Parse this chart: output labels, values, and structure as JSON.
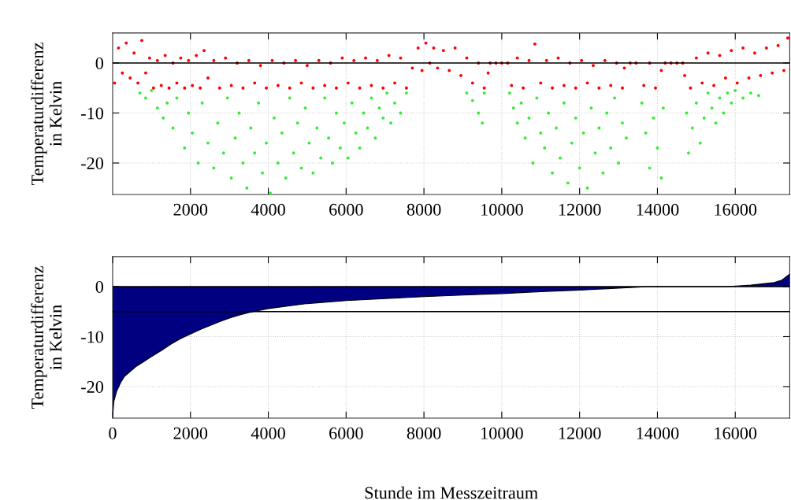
{
  "chart_data": [
    {
      "type": "scatter",
      "ylabel": "Temperaturdifferenz\nin Kelvin",
      "xlim": [
        0,
        17400
      ],
      "xticks": [
        2000,
        4000,
        6000,
        8000,
        10000,
        12000,
        14000,
        16000
      ],
      "ylim": [
        -26.3,
        6
      ],
      "yticks": [
        -20,
        -10,
        0
      ],
      "grid": true,
      "marker": "circle",
      "ref_lines": [
        {
          "axis": "y",
          "value": 0,
          "color": "#000000"
        }
      ],
      "series": [
        {
          "color": "#ff0000",
          "x": [
            50,
            150,
            250,
            350,
            450,
            550,
            650,
            750,
            850,
            950,
            1050,
            1150,
            1250,
            1350,
            1450,
            1550,
            1650,
            1750,
            1850,
            1950,
            2050,
            2150,
            2250,
            2350,
            2450,
            2600,
            2750,
            2900,
            3050,
            3200,
            3350,
            3500,
            3650,
            3800,
            3950,
            4100,
            4250,
            4400,
            4550,
            4700,
            4850,
            5000,
            5150,
            5300,
            5450,
            5600,
            5750,
            5900,
            6050,
            6200,
            6350,
            6500,
            6650,
            6800,
            6950,
            7100,
            7250,
            7400,
            7550,
            7700,
            7850,
            7950,
            8050,
            8150,
            8250,
            8350,
            8500,
            8650,
            8800,
            8950,
            9100,
            9250,
            9400,
            9550,
            9650,
            9700,
            9850,
            10000,
            10150,
            10250,
            10400,
            10550,
            10700,
            10850,
            11000,
            11150,
            11300,
            11450,
            11600,
            11750,
            11900,
            12050,
            12200,
            12350,
            12500,
            12650,
            12800,
            12950,
            13100,
            13150,
            13300,
            13450,
            13650,
            13800,
            13950,
            14100,
            14200,
            14350,
            14500,
            14650,
            14700,
            14850,
            15000,
            15150,
            15300,
            15450,
            15600,
            15750,
            15900,
            16050,
            16200,
            16350,
            16500,
            16650,
            16800,
            16950,
            17100,
            17250,
            17350
          ],
          "values": [
            -4,
            3,
            -2,
            4,
            -3,
            2,
            -4,
            4.5,
            -2,
            1,
            -5,
            0.5,
            -4.5,
            1.5,
            -5,
            0,
            -4,
            1,
            -5,
            0.5,
            -4.5,
            1.5,
            -5,
            2.5,
            -3,
            0.5,
            -5,
            1,
            -4.5,
            0,
            -5,
            0.5,
            -4,
            -0.5,
            -5,
            0.5,
            -4.5,
            0,
            -5,
            0.5,
            -4,
            -0.5,
            -5,
            0.5,
            -4.5,
            0,
            -5,
            1,
            -4,
            0.5,
            -5,
            1,
            -4.5,
            0.5,
            -5,
            1.5,
            -4,
            1,
            -5,
            -1,
            3,
            -1.5,
            4,
            0,
            3,
            -1,
            2.5,
            -1.5,
            3,
            -2.5,
            1,
            -4,
            0,
            -5,
            -2,
            0,
            0,
            0,
            0,
            -4.5,
            1,
            -5,
            0.5,
            3.8,
            -4,
            0.5,
            -5,
            1,
            -4.5,
            0,
            -5,
            0.5,
            -4,
            -0.5,
            -5,
            0.5,
            -4.5,
            0,
            -5,
            -1,
            0,
            0,
            -4.5,
            0,
            -5,
            -1.5,
            0,
            0,
            0,
            0,
            -2.5,
            -5,
            1,
            -4,
            2,
            -4.5,
            1.5,
            -3,
            2.5,
            -4,
            3,
            -3,
            2,
            -2.5,
            3,
            -2,
            3.5,
            -1.5,
            5
          ]
        },
        {
          "color": "#33ee33",
          "x": [
            700,
            850,
            1000,
            1150,
            1300,
            1400,
            1550,
            1650,
            1850,
            1950,
            2050,
            2200,
            2300,
            2450,
            2600,
            2700,
            2850,
            2950,
            3050,
            3150,
            3250,
            3350,
            3450,
            3550,
            3650,
            3750,
            3850,
            3950,
            4050,
            4150,
            4250,
            4350,
            4450,
            4550,
            4650,
            4750,
            4850,
            4950,
            5050,
            5150,
            5250,
            5350,
            5450,
            5550,
            5650,
            5750,
            5850,
            5950,
            6050,
            6150,
            6250,
            6350,
            6450,
            6550,
            6650,
            6750,
            6850,
            6950,
            7050,
            7150,
            7250,
            7400,
            7550,
            9100,
            9250,
            9400,
            9500,
            9550,
            10200,
            10300,
            10400,
            10500,
            10600,
            10700,
            10800,
            10900,
            11000,
            11100,
            11200,
            11300,
            11400,
            11500,
            11600,
            11700,
            11800,
            11900,
            12000,
            12100,
            12200,
            12300,
            12400,
            12500,
            12600,
            12700,
            12800,
            12900,
            13000,
            13100,
            13200,
            13600,
            13700,
            13800,
            13900,
            14000,
            14100,
            14150,
            14750,
            14800,
            14900,
            15000,
            15100,
            15200,
            15300,
            15400,
            15500,
            15600,
            15700,
            15800,
            15900,
            16000,
            16200,
            16400,
            16600
          ],
          "values": [
            -6,
            -7,
            -5.5,
            -9,
            -11,
            -8,
            -13,
            -7,
            -17,
            -10,
            -14,
            -20,
            -8,
            -16,
            -21,
            -12,
            -18,
            -7,
            -23,
            -15,
            -10,
            -20,
            -25,
            -13,
            -18,
            -8,
            -22,
            -16,
            -26,
            -11,
            -20,
            -14,
            -23,
            -7,
            -18,
            -12,
            -21,
            -9,
            -16,
            -22,
            -13,
            -19,
            -7,
            -15,
            -20,
            -10,
            -17,
            -12,
            -19,
            -8,
            -14,
            -17,
            -10,
            -13,
            -7,
            -15,
            -9,
            -11,
            -6,
            -12,
            -8,
            -10,
            -6,
            -6,
            -7.5,
            -10,
            -12,
            -6,
            -6,
            -9,
            -12,
            -8,
            -15,
            -11,
            -20,
            -7,
            -14,
            -17,
            -10,
            -22,
            -13,
            -19,
            -8,
            -24,
            -16,
            -11,
            -21,
            -14,
            -25,
            -9,
            -18,
            -13,
            -22,
            -10,
            -17,
            -7,
            -20,
            -12,
            -15,
            -8,
            -14,
            -21,
            -11,
            -17,
            -23,
            -9,
            -10,
            -18,
            -13,
            -8,
            -16,
            -11,
            -6,
            -9,
            -12,
            -7,
            -10,
            -6,
            -8,
            -5.5,
            -7,
            -6,
            -6.5
          ]
        }
      ]
    },
    {
      "type": "area",
      "ylabel": "Temperaturdifferenz\nin Kelvin",
      "xlabel": "Stunde im Messzeitraum",
      "xlim": [
        0,
        17400
      ],
      "xticks": [
        0,
        2000,
        4000,
        6000,
        8000,
        10000,
        12000,
        14000,
        16000
      ],
      "ylim": [
        -26.3,
        6
      ],
      "yticks": [
        -20,
        -10,
        0
      ],
      "grid": true,
      "ref_lines": [
        {
          "axis": "y",
          "value": 0,
          "color": "#000000"
        },
        {
          "axis": "y",
          "value": -5,
          "color": "#000000"
        }
      ],
      "series": [
        {
          "color": "#000080",
          "x": [
            0,
            30,
            100,
            200,
            300,
            450,
            600,
            800,
            1000,
            1250,
            1500,
            1750,
            2000,
            2250,
            2500,
            2750,
            3000,
            3250,
            3500,
            3750,
            4000,
            4500,
            5000,
            5500,
            6000,
            7000,
            8000,
            9000,
            10000,
            11000,
            12000,
            13000,
            13800,
            15800,
            16400,
            17000,
            17200,
            17400
          ],
          "values": [
            -26,
            -23,
            -21,
            -19.3,
            -18,
            -17,
            -16,
            -15,
            -14,
            -12.8,
            -11.5,
            -10.4,
            -9.5,
            -8.6,
            -7.8,
            -7,
            -6.3,
            -5.7,
            -5.2,
            -4.8,
            -4.4,
            -3.9,
            -3.4,
            -3.1,
            -2.8,
            -2.4,
            -2,
            -1.7,
            -1.4,
            -1,
            -0.7,
            -0.3,
            0,
            0,
            0.3,
            0.8,
            1.3,
            2.5
          ]
        }
      ]
    }
  ]
}
